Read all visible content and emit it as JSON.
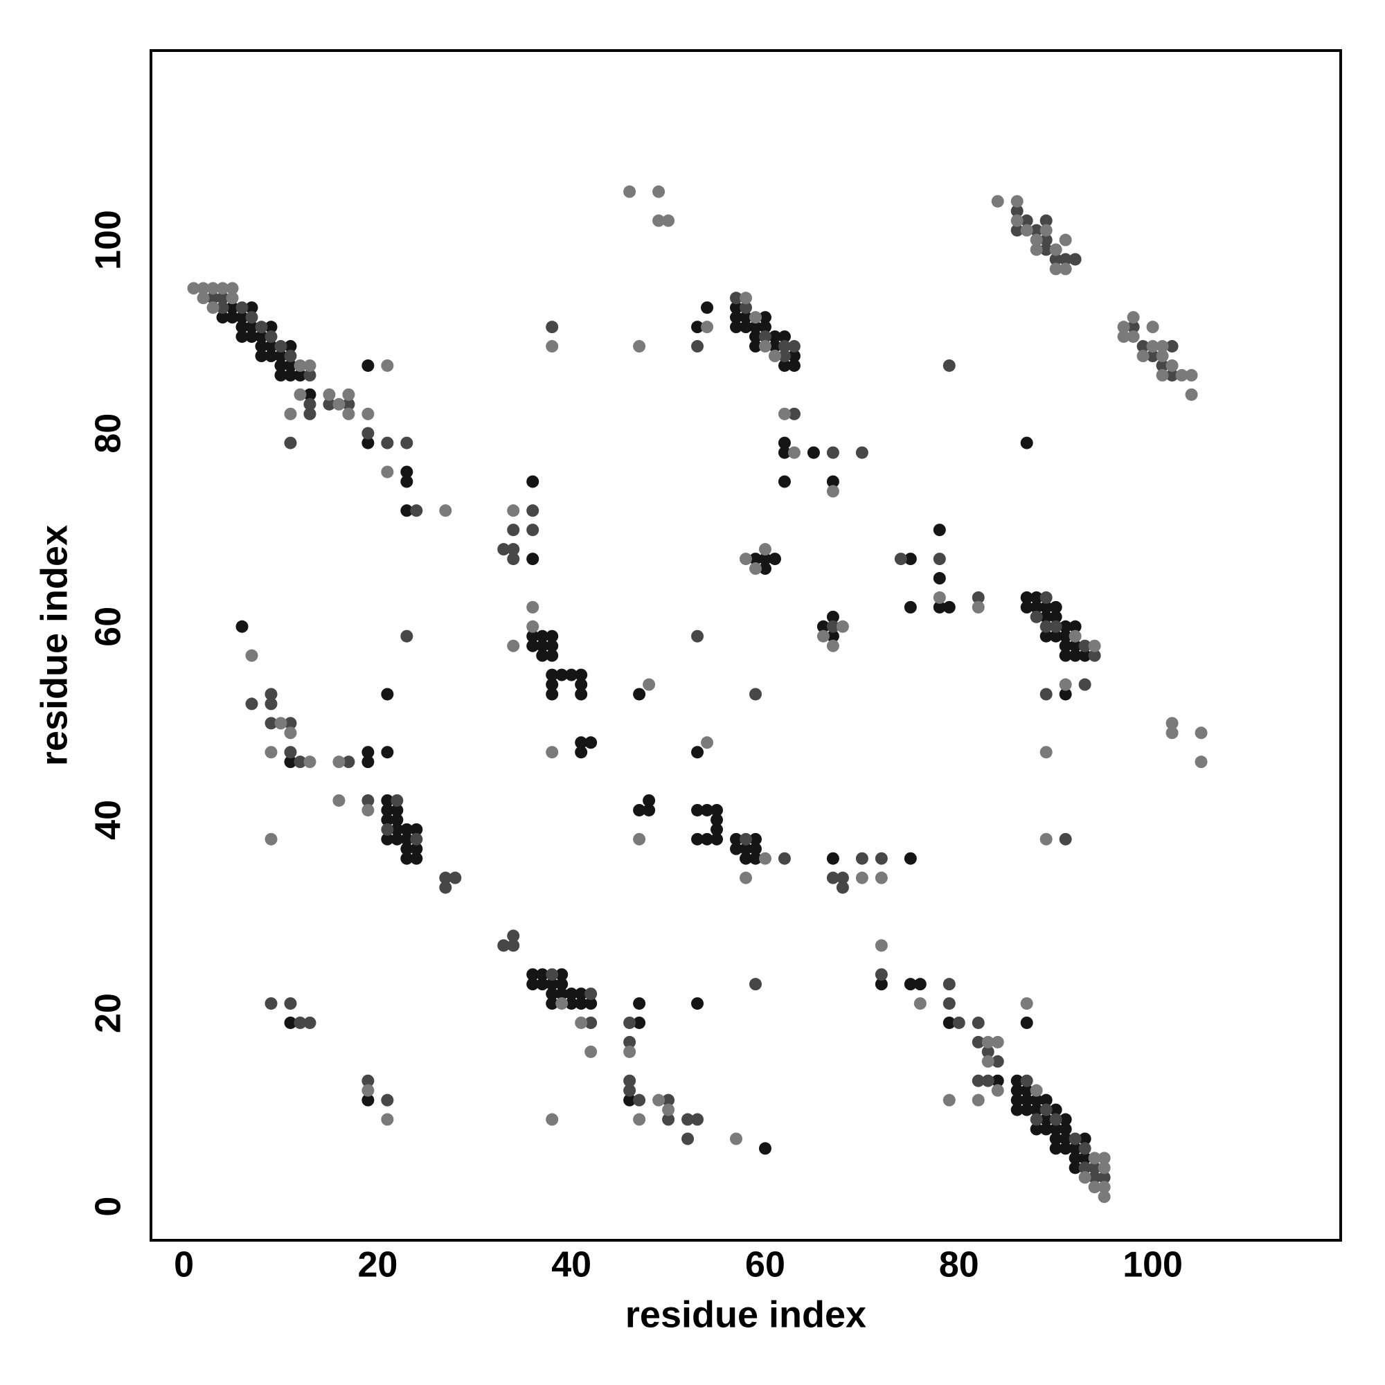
{
  "chart_data": {
    "type": "scatter",
    "x_label": "residue index",
    "y_label": "residue index",
    "xlim": [
      -3.4,
      119.4
    ],
    "ylim": [
      -3.5,
      119.6
    ],
    "xticks": [
      0,
      20,
      40,
      60,
      80,
      100
    ],
    "yticks": [
      0,
      20,
      40,
      60,
      80,
      100
    ],
    "grid": false,
    "series": [
      {
        "color": "#151515",
        "x": [
          5,
          5,
          4,
          6,
          6,
          6,
          7,
          7,
          7,
          8,
          8,
          8,
          9,
          9,
          9,
          10,
          10,
          10,
          11,
          11,
          11,
          12,
          13,
          19,
          19,
          23,
          23,
          23,
          6,
          11,
          19,
          19,
          21,
          21,
          21,
          21,
          21,
          21,
          22,
          22,
          22,
          22,
          23,
          23,
          23,
          23,
          24,
          24,
          24,
          11,
          19,
          36,
          36,
          36,
          36,
          37,
          37,
          37,
          38,
          38,
          38,
          38,
          38,
          38,
          39,
          40,
          41,
          41,
          41,
          41,
          41,
          42,
          36,
          36,
          37,
          37,
          38,
          38,
          38,
          39,
          39,
          39,
          40,
          40,
          41,
          41,
          42,
          47,
          47,
          48,
          48,
          47,
          47,
          46,
          53,
          60,
          53,
          54,
          53,
          53,
          54,
          55,
          55,
          55,
          53,
          54,
          55,
          57,
          57,
          58,
          58,
          59,
          59,
          59,
          57,
          57,
          58,
          57,
          58,
          59,
          59,
          59,
          60,
          60,
          61,
          61,
          62,
          62,
          63,
          63,
          62,
          62,
          62,
          65,
          67,
          59,
          60,
          60,
          61,
          66,
          67,
          67,
          67,
          75,
          72,
          75,
          76,
          75,
          75,
          78,
          78,
          78,
          79,
          79,
          84,
          86,
          86,
          86,
          86,
          87,
          87,
          87,
          88,
          88,
          88,
          89,
          89,
          89,
          90,
          90,
          90,
          90,
          91,
          91,
          91,
          91,
          92,
          92,
          92,
          93,
          93,
          87,
          87,
          87,
          87,
          88,
          88,
          89,
          89,
          89,
          90,
          90,
          90,
          91,
          91,
          91,
          91,
          92,
          92,
          92,
          93,
          91
        ],
        "values": [
          93,
          92,
          92,
          92,
          91,
          90,
          93,
          91,
          90,
          90,
          89,
          88,
          91,
          89,
          88,
          88,
          87,
          86,
          89,
          87,
          86,
          86,
          84,
          79,
          87,
          76,
          75,
          72,
          60,
          46,
          47,
          46,
          47,
          53,
          42,
          41,
          40,
          38,
          41,
          40,
          39,
          38,
          39,
          38,
          37,
          36,
          39,
          37,
          36,
          19,
          11,
          75,
          67,
          59,
          58,
          59,
          58,
          57,
          59,
          58,
          57,
          55,
          54,
          53,
          55,
          55,
          55,
          54,
          53,
          48,
          47,
          48,
          24,
          23,
          24,
          23,
          23,
          22,
          21,
          24,
          23,
          22,
          22,
          21,
          22,
          21,
          21,
          53,
          41,
          42,
          41,
          21,
          19,
          11,
          21,
          6,
          91,
          93,
          47,
          41,
          41,
          41,
          40,
          39,
          38,
          38,
          38,
          38,
          37,
          37,
          36,
          38,
          37,
          36,
          93,
          92,
          92,
          91,
          91,
          91,
          90,
          89,
          92,
          91,
          90,
          89,
          90,
          87,
          88,
          87,
          79,
          78,
          75,
          78,
          75,
          67,
          67,
          66,
          67,
          60,
          61,
          59,
          36,
          36,
          23,
          23,
          23,
          67,
          62,
          70,
          65,
          62,
          62,
          19,
          13,
          13,
          12,
          11,
          10,
          12,
          11,
          10,
          11,
          10,
          8,
          11,
          9,
          8,
          10,
          8,
          7,
          6,
          9,
          8,
          7,
          6,
          6,
          5,
          4,
          7,
          5,
          19,
          79,
          63,
          62,
          63,
          62,
          62,
          61,
          59,
          62,
          61,
          59,
          60,
          59,
          58,
          57,
          60,
          58,
          57,
          57,
          53
        ]
      },
      {
        "color": "#474747",
        "x": [
          3,
          4,
          4,
          6,
          7,
          8,
          9,
          10,
          11,
          13,
          13,
          13,
          11,
          15,
          17,
          19,
          21,
          23,
          24,
          7,
          9,
          9,
          9,
          11,
          11,
          12,
          17,
          23,
          19,
          21,
          22,
          24,
          27,
          28,
          27,
          9,
          11,
          12,
          13,
          19,
          21,
          33,
          34,
          34,
          34,
          36,
          36,
          38,
          42,
          42,
          38,
          33,
          34,
          34,
          46,
          46,
          46,
          46,
          47,
          50,
          50,
          52,
          53,
          52,
          59,
          53,
          53,
          58,
          62,
          59,
          57,
          58,
          60,
          62,
          62,
          63,
          63,
          67,
          70,
          67,
          67,
          68,
          68,
          70,
          72,
          72,
          74,
          78,
          79,
          82,
          79,
          79,
          80,
          82,
          82,
          83,
          84,
          82,
          83,
          87,
          88,
          89,
          90,
          92,
          93,
          93,
          94,
          94,
          95,
          86,
          86,
          87,
          88,
          89,
          89,
          89,
          90,
          91,
          92,
          88,
          89,
          89,
          90,
          93,
          94,
          89,
          93,
          91,
          98,
          99,
          100,
          101,
          102,
          102
        ],
        "values": [
          94,
          94,
          93,
          93,
          92,
          91,
          90,
          89,
          88,
          86,
          83,
          82,
          79,
          83,
          83,
          80,
          79,
          79,
          72,
          52,
          53,
          52,
          50,
          50,
          47,
          46,
          46,
          59,
          42,
          39,
          42,
          38,
          34,
          34,
          33,
          21,
          21,
          19,
          19,
          13,
          11,
          68,
          70,
          68,
          67,
          72,
          70,
          24,
          22,
          19,
          91,
          27,
          28,
          27,
          19,
          17,
          13,
          12,
          11,
          11,
          9,
          9,
          9,
          7,
          23,
          89,
          59,
          38,
          36,
          53,
          94,
          93,
          90,
          89,
          88,
          89,
          82,
          78,
          78,
          60,
          34,
          34,
          33,
          36,
          36,
          24,
          67,
          67,
          87,
          63,
          23,
          21,
          19,
          19,
          17,
          16,
          15,
          13,
          13,
          13,
          9,
          10,
          9,
          7,
          6,
          4,
          4,
          3,
          3,
          103,
          101,
          102,
          101,
          102,
          100,
          99,
          98,
          98,
          98,
          61,
          63,
          60,
          60,
          58,
          57,
          53,
          54,
          38,
          91,
          89,
          88,
          87,
          89,
          86
        ]
      },
      {
        "color": "#7a7a7a",
        "x": [
          1,
          2,
          2,
          3,
          3,
          4,
          5,
          5,
          12,
          12,
          13,
          11,
          15,
          16,
          17,
          17,
          19,
          21,
          21,
          27,
          7,
          10,
          11,
          9,
          13,
          16,
          16,
          19,
          9,
          19,
          21,
          34,
          36,
          36,
          34,
          38,
          38,
          47,
          46,
          49,
          49,
          50,
          39,
          41,
          42,
          38,
          48,
          47,
          46,
          47,
          49,
          50,
          57,
          54,
          54,
          60,
          58,
          58,
          59,
          60,
          61,
          62,
          63,
          67,
          58,
          59,
          60,
          66,
          67,
          68,
          70,
          72,
          72,
          76,
          78,
          82,
          79,
          83,
          84,
          83,
          84,
          82,
          88,
          93,
          94,
          94,
          95,
          95,
          95,
          95,
          87,
          84,
          86,
          86,
          87,
          88,
          88,
          89,
          90,
          90,
          91,
          91,
          92,
          94,
          91,
          89,
          89,
          97,
          97,
          98,
          98,
          99,
          100,
          100,
          101,
          101,
          101,
          102,
          103,
          104,
          104,
          102,
          102,
          105,
          105
        ],
        "values": [
          95,
          95,
          94,
          95,
          93,
          95,
          95,
          94,
          87,
          84,
          87,
          82,
          84,
          83,
          84,
          82,
          82,
          87,
          76,
          72,
          57,
          50,
          49,
          47,
          46,
          46,
          42,
          41,
          38,
          12,
          9,
          72,
          62,
          60,
          58,
          47,
          89,
          89,
          105,
          105,
          102,
          102,
          21,
          19,
          16,
          9,
          54,
          38,
          16,
          9,
          11,
          10,
          7,
          91,
          48,
          36,
          34,
          94,
          92,
          89,
          88,
          82,
          78,
          74,
          67,
          66,
          68,
          59,
          58,
          60,
          34,
          34,
          27,
          21,
          63,
          62,
          11,
          17,
          17,
          15,
          12,
          11,
          12,
          3,
          5,
          2,
          5,
          4,
          2,
          1,
          21,
          104,
          104,
          102,
          101,
          100,
          99,
          101,
          99,
          97,
          100,
          97,
          59,
          58,
          54,
          47,
          38,
          91,
          90,
          92,
          90,
          88,
          91,
          89,
          89,
          88,
          86,
          87,
          86,
          86,
          84,
          50,
          49,
          49,
          46
        ]
      }
    ]
  }
}
